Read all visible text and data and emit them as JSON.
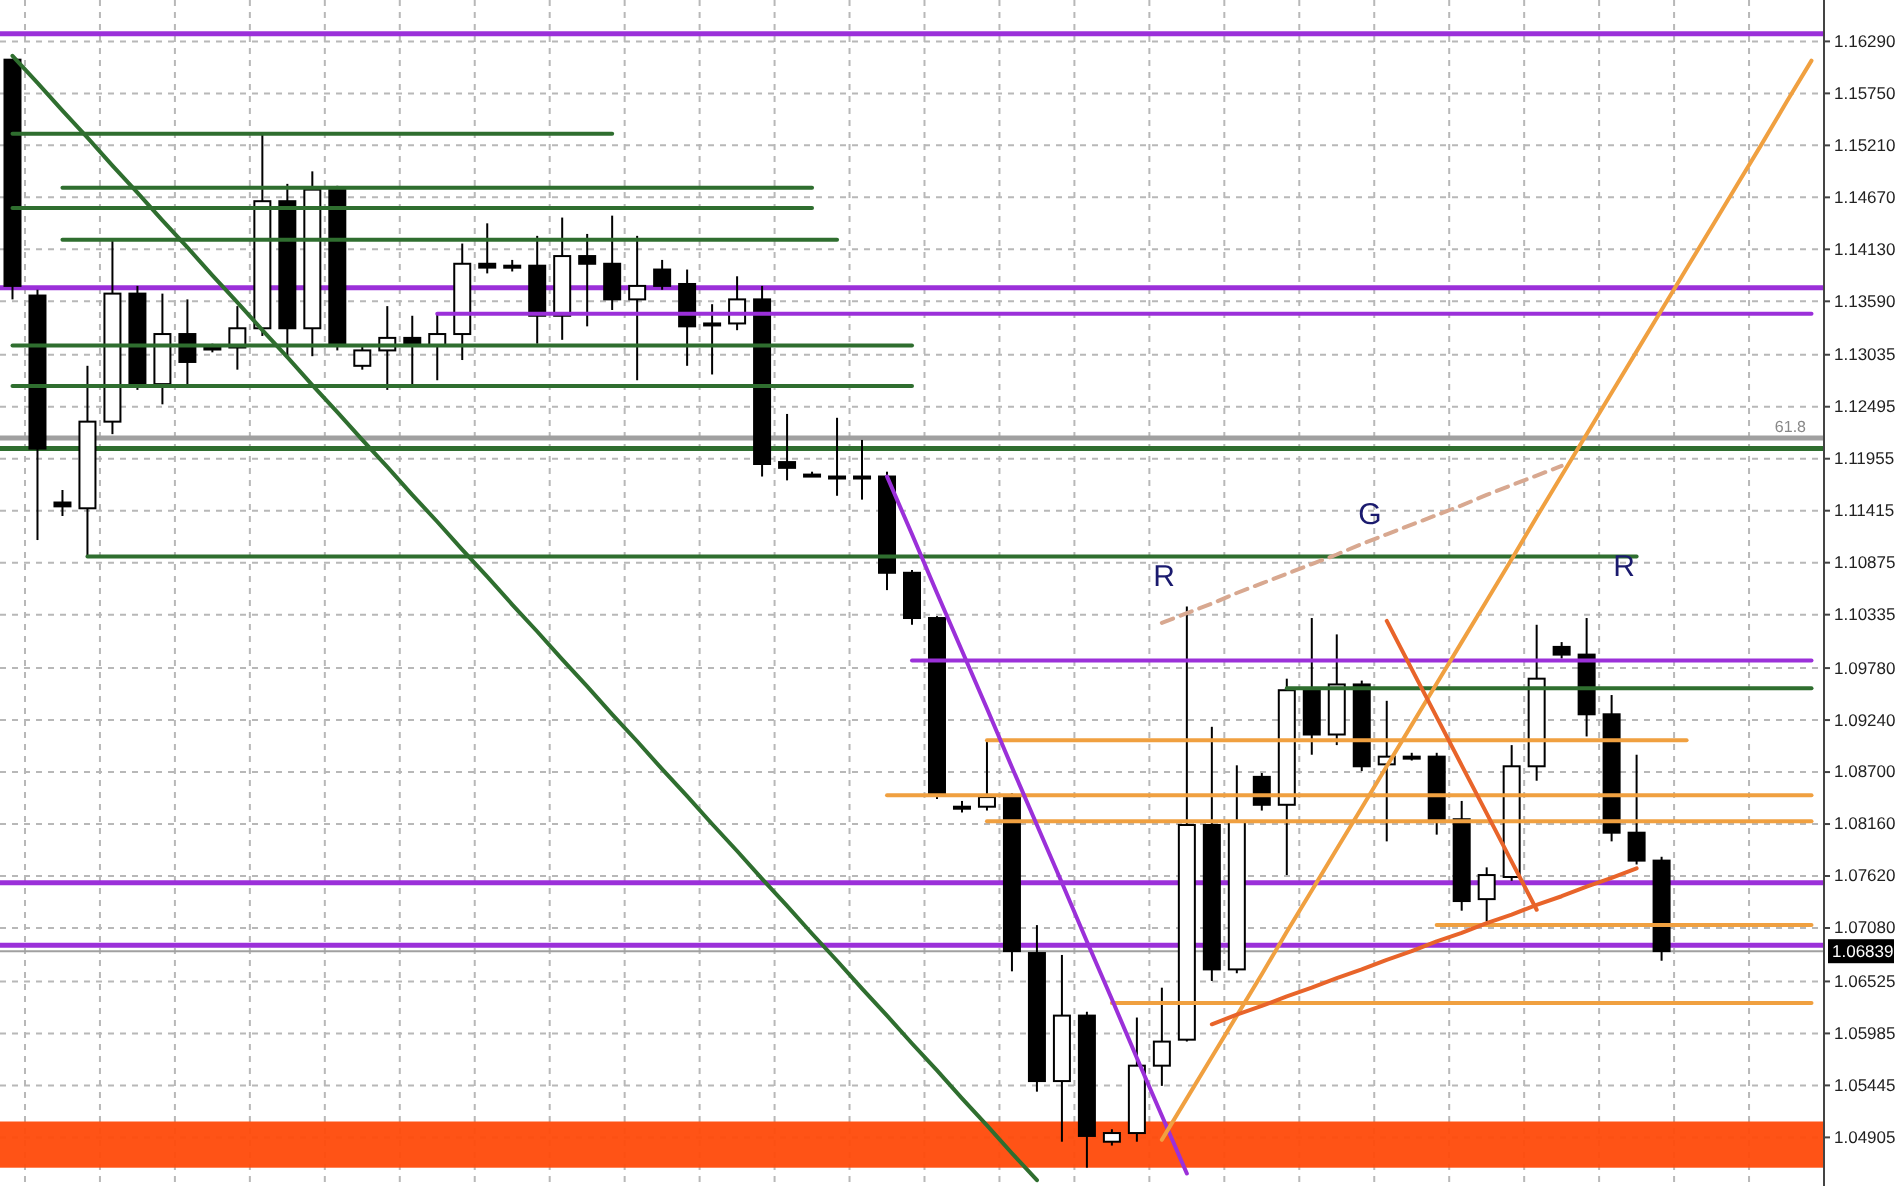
{
  "chart_data": {
    "type": "candlestick",
    "categories": [
      null,
      null,
      null,
      null,
      null,
      null,
      null,
      null,
      null,
      null,
      null,
      null,
      null,
      null,
      null,
      null,
      null,
      null,
      null,
      null,
      null,
      null,
      null,
      null,
      null,
      null,
      null,
      null,
      null,
      null,
      null,
      null,
      null,
      null,
      null,
      null,
      null,
      null,
      null,
      null,
      null,
      null,
      null,
      null,
      null,
      null,
      null,
      null,
      null,
      null,
      null,
      null,
      null,
      null,
      null,
      null,
      null,
      null,
      null,
      null,
      null,
      null,
      null,
      null,
      null,
      null,
      null,
      null,
      null,
      null,
      null,
      null,
      null
    ],
    "ohlc": [
      [
        1.161,
        1.161,
        1.1361,
        1.1375
      ],
      [
        1.1365,
        1.1371,
        1.1111,
        1.1206
      ],
      [
        1.115,
        1.1163,
        1.1136,
        1.1146
      ],
      [
        1.1144,
        1.1292,
        1.1094,
        1.1234
      ],
      [
        1.1234,
        1.1423,
        1.1221,
        1.1367
      ],
      [
        1.1367,
        1.1375,
        1.1267,
        1.1271
      ],
      [
        1.1273,
        1.1367,
        1.1252,
        1.1325
      ],
      [
        1.1325,
        1.1361,
        1.1273,
        1.1296
      ],
      [
        1.1311,
        1.1315,
        1.1306,
        1.1311
      ],
      [
        1.1311,
        1.1354,
        1.1288,
        1.1331
      ],
      [
        1.1331,
        1.1533,
        1.1323,
        1.1463
      ],
      [
        1.1463,
        1.1481,
        1.1302,
        1.1331
      ],
      [
        1.1331,
        1.1494,
        1.1302,
        1.1475
      ],
      [
        1.1475,
        1.1479,
        1.1308,
        1.1315
      ],
      [
        1.1292,
        1.1313,
        1.1288,
        1.1308
      ],
      [
        1.1308,
        1.1354,
        1.1267,
        1.1321
      ],
      [
        1.1321,
        1.1344,
        1.1271,
        1.1313
      ],
      [
        1.1313,
        1.1346,
        1.1277,
        1.1325
      ],
      [
        1.1325,
        1.1419,
        1.1298,
        1.1398
      ],
      [
        1.1398,
        1.144,
        1.1388,
        1.1394
      ],
      [
        1.1396,
        1.1402,
        1.139,
        1.1396
      ],
      [
        1.1396,
        1.1427,
        1.1315,
        1.1344
      ],
      [
        1.1344,
        1.1446,
        1.1319,
        1.1406
      ],
      [
        1.1406,
        1.1429,
        1.1333,
        1.1398
      ],
      [
        1.1398,
        1.1448,
        1.135,
        1.1361
      ],
      [
        1.1361,
        1.1427,
        1.1277,
        1.1375
      ],
      [
        1.1392,
        1.1402,
        1.1371,
        1.1375
      ],
      [
        1.1377,
        1.1392,
        1.1292,
        1.1333
      ],
      [
        1.1336,
        1.1356,
        1.1283,
        1.1336
      ],
      [
        1.1336,
        1.1385,
        1.1329,
        1.1361
      ],
      [
        1.1361,
        1.1375,
        1.1177,
        1.119
      ],
      [
        1.1192,
        1.1242,
        1.1173,
        1.1186
      ],
      [
        1.1179,
        1.1182,
        1.1177,
        1.1179
      ],
      [
        1.1177,
        1.1238,
        1.1157,
        1.1177
      ],
      [
        1.1177,
        1.1215,
        1.1153,
        1.1177
      ],
      [
        1.1177,
        1.1182,
        1.1059,
        1.1077
      ],
      [
        1.1077,
        1.108,
        1.1023,
        1.103
      ],
      [
        1.103,
        1.1032,
        1.0842,
        1.0846
      ],
      [
        1.0834,
        1.084,
        1.0828,
        1.0834
      ],
      [
        1.0834,
        1.0903,
        1.083,
        1.0844
      ],
      [
        1.0844,
        1.0848,
        1.0663,
        1.0684
      ],
      [
        1.0682,
        1.0711,
        1.0538,
        1.0549
      ],
      [
        1.0549,
        1.068,
        1.0486,
        1.0617
      ],
      [
        1.0617,
        1.0621,
        1.0459,
        1.0492
      ],
      [
        1.0486,
        1.0499,
        1.0482,
        1.0495
      ],
      [
        1.0495,
        1.0615,
        1.0486,
        1.0565
      ],
      [
        1.0565,
        1.0646,
        1.0544,
        1.059
      ],
      [
        1.0592,
        1.1042,
        1.059,
        1.0815
      ],
      [
        1.0815,
        1.0917,
        1.0653,
        1.0665
      ],
      [
        1.0665,
        1.0877,
        1.0661,
        1.0819
      ],
      [
        1.0865,
        1.0869,
        1.083,
        1.0836
      ],
      [
        1.0836,
        1.0967,
        1.0763,
        1.0955
      ],
      [
        1.0955,
        1.103,
        1.0888,
        1.0909
      ],
      [
        1.0909,
        1.1013,
        1.0898,
        1.0961
      ],
      [
        1.0961,
        1.0965,
        1.0871,
        1.0876
      ],
      [
        1.0878,
        1.0944,
        1.0798,
        1.0886
      ],
      [
        1.0886,
        1.089,
        1.0882,
        1.0886
      ],
      [
        1.0886,
        1.089,
        1.0805,
        1.0821
      ],
      [
        1.0821,
        1.084,
        1.0726,
        1.0736
      ],
      [
        1.0738,
        1.0771,
        1.0715,
        1.0763
      ],
      [
        1.0761,
        1.0898,
        1.0757,
        1.0876
      ],
      [
        1.0876,
        1.1023,
        1.0861,
        1.0967
      ],
      [
        1.1,
        1.1005,
        1.0988,
        1.0992
      ],
      [
        1.0992,
        1.103,
        1.0907,
        1.093
      ],
      [
        1.093,
        1.095,
        1.0798,
        1.0807
      ],
      [
        1.0807,
        1.0888,
        1.0774,
        1.0778
      ],
      [
        1.0778,
        1.0782,
        1.0674,
        1.0684
      ],
      null,
      null,
      null,
      null,
      null,
      null
    ],
    "series": [
      {
        "type": "line",
        "color": "#2f6e2f",
        "values": [
          1.1533,
          1.1533,
          1.1533,
          1.1533,
          1.1533,
          1.1533,
          1.1533,
          1.1533,
          1.1533,
          1.1533,
          1.1533,
          1.1533,
          1.1533,
          1.1533,
          1.1533,
          1.1533,
          1.1533,
          1.1533,
          1.1533,
          1.1533,
          1.1533,
          1.1533,
          1.1533,
          1.1533,
          1.1533,
          null,
          null,
          null,
          null,
          null,
          null,
          null,
          null,
          null,
          null,
          null,
          null,
          null,
          null,
          null,
          null,
          null,
          null,
          null,
          null,
          null,
          null,
          null,
          null,
          null,
          null,
          null,
          null,
          null,
          null,
          null,
          null,
          null,
          null,
          null,
          null,
          null,
          null,
          null,
          null,
          null,
          null,
          null,
          null,
          null,
          null,
          null,
          null
        ]
      },
      {
        "type": "line",
        "color": "#2f6e2f",
        "values": [
          null,
          null,
          1.1477,
          1.1477,
          1.1477,
          1.1477,
          1.1477,
          1.1477,
          1.1477,
          1.1477,
          1.1477,
          1.1477,
          1.1477,
          1.1477,
          1.1477,
          1.1477,
          1.1477,
          1.1477,
          1.1477,
          1.1477,
          1.1477,
          1.1477,
          1.1477,
          1.1477,
          1.1477,
          1.1477,
          1.1477,
          1.1477,
          1.1477,
          1.1477,
          1.1477,
          1.1477,
          1.1477,
          null,
          null,
          null,
          null,
          null,
          null,
          null,
          null,
          null,
          null,
          null,
          null,
          null,
          null,
          null,
          null,
          null,
          null,
          null,
          null,
          null,
          null,
          null,
          null,
          null,
          null,
          null,
          null,
          null,
          null,
          null,
          null,
          null,
          null,
          null,
          null,
          null,
          null,
          null,
          null
        ]
      },
      {
        "type": "line",
        "color": "#2f6e2f",
        "values": [
          1.1456,
          1.1456,
          1.1456,
          1.1456,
          1.1456,
          1.1456,
          1.1456,
          1.1456,
          1.1456,
          1.1456,
          1.1456,
          1.1456,
          1.1456,
          1.1456,
          1.1456,
          1.1456,
          1.1456,
          1.1456,
          1.1456,
          1.1456,
          1.1456,
          1.1456,
          1.1456,
          1.1456,
          1.1456,
          1.1456,
          1.1456,
          1.1456,
          1.1456,
          1.1456,
          1.1456,
          1.1456,
          1.1456,
          null,
          null,
          null,
          null,
          null,
          null,
          null,
          null,
          null,
          null,
          null,
          null,
          null,
          null,
          null,
          null,
          null,
          null,
          null,
          null,
          null,
          null,
          null,
          null,
          null,
          null,
          null,
          null,
          null,
          null,
          null,
          null,
          null,
          null,
          null,
          null,
          null,
          null,
          null,
          null
        ]
      },
      {
        "type": "line",
        "color": "#2f6e2f",
        "values": [
          null,
          null,
          1.1423,
          1.1423,
          1.1423,
          1.1423,
          1.1423,
          1.1423,
          1.1423,
          1.1423,
          1.1423,
          1.1423,
          1.1423,
          1.1423,
          1.1423,
          1.1423,
          1.1423,
          1.1423,
          1.1423,
          1.1423,
          1.1423,
          1.1423,
          1.1423,
          1.1423,
          1.1423,
          1.1423,
          1.1423,
          1.1423,
          1.1423,
          1.1423,
          1.1423,
          1.1423,
          1.1423,
          1.1423,
          null,
          null,
          null,
          null,
          null,
          null,
          null,
          null,
          null,
          null,
          null,
          null,
          null,
          null,
          null,
          null,
          null,
          null,
          null,
          null,
          null,
          null,
          null,
          null,
          null,
          null,
          null,
          null,
          null,
          null,
          null,
          null,
          null,
          null,
          null,
          null,
          null,
          null,
          null
        ]
      },
      {
        "type": "line",
        "color": "#2f6e2f",
        "values": [
          1.1313,
          1.1313,
          1.1313,
          1.1313,
          1.1313,
          1.1313,
          1.1313,
          1.1313,
          1.1313,
          1.1313,
          1.1313,
          1.1313,
          1.1313,
          1.1313,
          1.1313,
          1.1313,
          1.1313,
          1.1313,
          1.1313,
          1.1313,
          1.1313,
          1.1313,
          1.1313,
          1.1313,
          1.1313,
          1.1313,
          1.1313,
          1.1313,
          1.1313,
          1.1313,
          1.1313,
          1.1313,
          1.1313,
          1.1313,
          1.1313,
          1.1313,
          1.1313,
          null,
          null,
          null,
          null,
          null,
          null,
          null,
          null,
          null,
          null,
          null,
          null,
          null,
          null,
          null,
          null,
          null,
          null,
          null,
          null,
          null,
          null,
          null,
          null,
          null,
          null,
          null,
          null,
          null,
          null,
          null,
          null,
          null,
          null,
          null,
          null
        ]
      },
      {
        "type": "line",
        "color": "#2f6e2f",
        "values": [
          1.1271,
          1.1271,
          1.1271,
          1.1271,
          1.1271,
          1.1271,
          1.1271,
          1.1271,
          1.1271,
          1.1271,
          1.1271,
          1.1271,
          1.1271,
          1.1271,
          1.1271,
          1.1271,
          1.1271,
          1.1271,
          1.1271,
          1.1271,
          1.1271,
          1.1271,
          1.1271,
          1.1271,
          1.1271,
          1.1271,
          1.1271,
          1.1271,
          1.1271,
          1.1271,
          1.1271,
          1.1271,
          1.1271,
          1.1271,
          1.1271,
          1.1271,
          1.1271,
          null,
          null,
          null,
          null,
          null,
          null,
          null,
          null,
          null,
          null,
          null,
          null,
          null,
          null,
          null,
          null,
          null,
          null,
          null,
          null,
          null,
          null,
          null,
          null,
          null,
          null,
          null,
          null,
          null,
          null,
          null,
          null,
          null,
          null,
          null,
          null
        ]
      },
      {
        "type": "line",
        "color": "#2f6e2f",
        "values": [
          null,
          null,
          null,
          1.1094,
          1.1094,
          1.1094,
          1.1094,
          1.1094,
          1.1094,
          1.1094,
          1.1094,
          1.1094,
          1.1094,
          1.1094,
          1.1094,
          1.1094,
          1.1094,
          1.1094,
          1.1094,
          1.1094,
          1.1094,
          1.1094,
          1.1094,
          1.1094,
          1.1094,
          1.1094,
          1.1094,
          1.1094,
          1.1094,
          1.1094,
          1.1094,
          1.1094,
          1.1094,
          1.1094,
          1.1094,
          1.1094,
          1.1094,
          1.1094,
          1.1094,
          1.1094,
          1.1094,
          1.1094,
          1.1094,
          1.1094,
          1.1094,
          1.1094,
          1.1094,
          1.1094,
          1.1094,
          1.1094,
          1.1094,
          1.1094,
          1.1094,
          1.1094,
          1.1094,
          1.1094,
          1.1094,
          1.1094,
          1.1094,
          1.1094,
          1.1094,
          1.1094,
          1.1094,
          1.1094,
          1.1094,
          1.1094,
          null,
          null,
          null,
          null,
          null,
          null,
          null
        ]
      },
      {
        "type": "line",
        "color": "#2f6e2f",
        "values": [
          null,
          null,
          null,
          null,
          null,
          null,
          null,
          null,
          null,
          null,
          null,
          null,
          null,
          null,
          null,
          null,
          null,
          null,
          null,
          null,
          null,
          null,
          null,
          null,
          null,
          null,
          null,
          null,
          null,
          null,
          null,
          null,
          null,
          null,
          null,
          null,
          null,
          null,
          null,
          null,
          null,
          null,
          null,
          null,
          null,
          null,
          null,
          null,
          null,
          null,
          null,
          1.0957,
          1.0957,
          1.0957,
          1.0957,
          1.0957,
          1.0957,
          1.0957,
          1.0957,
          1.0957,
          1.0957,
          1.0957,
          1.0957,
          1.0957,
          1.0957,
          1.0957,
          1.0957,
          1.0957,
          1.0957,
          1.0957,
          1.0957,
          1.0957,
          1.0957
        ]
      },
      {
        "type": "line",
        "color": "#9b30d9",
        "values": [
          null,
          null,
          null,
          null,
          null,
          null,
          null,
          null,
          null,
          null,
          null,
          null,
          null,
          null,
          null,
          null,
          null,
          1.1346,
          1.1346,
          1.1346,
          1.1346,
          1.1346,
          1.1346,
          1.1346,
          1.1346,
          1.1346,
          1.1346,
          1.1346,
          1.1346,
          1.1346,
          1.1346,
          1.1346,
          1.1346,
          1.1346,
          1.1346,
          1.1346,
          1.1346,
          1.1346,
          1.1346,
          1.1346,
          1.1346,
          1.1346,
          1.1346,
          1.1346,
          1.1346,
          1.1346,
          1.1346,
          1.1346,
          1.1346,
          1.1346,
          1.1346,
          1.1346,
          1.1346,
          1.1346,
          1.1346,
          1.1346,
          1.1346,
          1.1346,
          1.1346,
          1.1346,
          1.1346,
          1.1346,
          1.1346,
          1.1346,
          1.1346,
          1.1346,
          1.1346,
          1.1346,
          1.1346,
          1.1346,
          1.1346,
          1.1346,
          1.1346
        ]
      },
      {
        "type": "line",
        "color": "#9b30d9",
        "values": [
          null,
          null,
          null,
          null,
          null,
          null,
          null,
          null,
          null,
          null,
          null,
          null,
          null,
          null,
          null,
          null,
          null,
          null,
          null,
          null,
          null,
          null,
          null,
          null,
          null,
          null,
          null,
          null,
          null,
          null,
          null,
          null,
          null,
          null,
          null,
          null,
          1.0986,
          1.0986,
          1.0986,
          1.0986,
          1.0986,
          1.0986,
          1.0986,
          1.0986,
          1.0986,
          1.0986,
          1.0986,
          1.0986,
          1.0986,
          1.0986,
          1.0986,
          1.0986,
          1.0986,
          1.0986,
          1.0986,
          1.0986,
          1.0986,
          1.0986,
          1.0986,
          1.0986,
          1.0986,
          1.0986,
          1.0986,
          1.0986,
          1.0986,
          1.0986,
          1.0986,
          1.0986,
          1.0986,
          1.0986,
          1.0986,
          1.0986,
          1.0986
        ]
      },
      {
        "type": "line",
        "color": "#f0a040",
        "values": [
          null,
          null,
          null,
          null,
          null,
          null,
          null,
          null,
          null,
          null,
          null,
          null,
          null,
          null,
          null,
          null,
          null,
          null,
          null,
          null,
          null,
          null,
          null,
          null,
          null,
          null,
          null,
          null,
          null,
          null,
          null,
          null,
          null,
          null,
          null,
          null,
          null,
          null,
          null,
          1.0903,
          1.0903,
          1.0903,
          1.0903,
          1.0903,
          1.0903,
          1.0903,
          1.0903,
          1.0903,
          1.0903,
          1.0903,
          1.0903,
          1.0903,
          1.0903,
          1.0903,
          1.0903,
          1.0903,
          1.0903,
          1.0903,
          1.0903,
          1.0903,
          1.0903,
          1.0903,
          1.0903,
          1.0903,
          1.0903,
          1.0903,
          1.0903,
          1.0903,
          null,
          null,
          null,
          null,
          null
        ]
      },
      {
        "type": "line",
        "color": "#f0a040",
        "values": [
          null,
          null,
          null,
          null,
          null,
          null,
          null,
          null,
          null,
          null,
          null,
          null,
          null,
          null,
          null,
          null,
          null,
          null,
          null,
          null,
          null,
          null,
          null,
          null,
          null,
          null,
          null,
          null,
          null,
          null,
          null,
          null,
          null,
          null,
          null,
          1.0846,
          1.0846,
          1.0846,
          1.0846,
          1.0846,
          1.0846,
          1.0846,
          1.0846,
          1.0846,
          1.0846,
          1.0846,
          1.0846,
          1.0846,
          1.0846,
          1.0846,
          1.0846,
          1.0846,
          1.0846,
          1.0846,
          1.0846,
          1.0846,
          1.0846,
          1.0846,
          1.0846,
          1.0846,
          1.0846,
          1.0846,
          1.0846,
          1.0846,
          1.0846,
          1.0846,
          1.0846,
          1.0846,
          1.0846,
          1.0846,
          1.0846,
          1.0846,
          1.0846
        ]
      },
      {
        "type": "line",
        "color": "#f0a040",
        "values": [
          null,
          null,
          null,
          null,
          null,
          null,
          null,
          null,
          null,
          null,
          null,
          null,
          null,
          null,
          null,
          null,
          null,
          null,
          null,
          null,
          null,
          null,
          null,
          null,
          null,
          null,
          null,
          null,
          null,
          null,
          null,
          null,
          null,
          null,
          null,
          null,
          null,
          null,
          null,
          1.0819,
          1.0819,
          1.0819,
          1.0819,
          1.0819,
          1.0819,
          1.0819,
          1.0819,
          1.0819,
          1.0819,
          1.0819,
          1.0819,
          1.0819,
          1.0819,
          1.0819,
          1.0819,
          1.0819,
          1.0819,
          1.0819,
          1.0819,
          1.0819,
          1.0819,
          1.0819,
          1.0819,
          1.0819,
          1.0819,
          1.0819,
          1.0819,
          1.0819,
          1.0819,
          1.0819,
          1.0819,
          1.0819,
          1.0819
        ]
      },
      {
        "type": "line",
        "color": "#f0a040",
        "values": [
          null,
          null,
          null,
          null,
          null,
          null,
          null,
          null,
          null,
          null,
          null,
          null,
          null,
          null,
          null,
          null,
          null,
          null,
          null,
          null,
          null,
          null,
          null,
          null,
          null,
          null,
          null,
          null,
          null,
          null,
          null,
          null,
          null,
          null,
          null,
          null,
          null,
          null,
          null,
          null,
          null,
          null,
          null,
          null,
          null,
          null,
          null,
          null,
          null,
          null,
          null,
          null,
          null,
          null,
          null,
          null,
          null,
          1.0711,
          1.0711,
          1.0711,
          1.0711,
          1.0711,
          1.0711,
          1.0711,
          1.0711,
          1.0711,
          1.0711,
          1.0711,
          1.0711,
          1.0711,
          1.0711,
          1.0711,
          1.0711
        ]
      },
      {
        "type": "line",
        "color": "#f0a040",
        "values": [
          null,
          null,
          null,
          null,
          null,
          null,
          null,
          null,
          null,
          null,
          null,
          null,
          null,
          null,
          null,
          null,
          null,
          null,
          null,
          null,
          null,
          null,
          null,
          null,
          null,
          null,
          null,
          null,
          null,
          null,
          null,
          null,
          null,
          null,
          null,
          null,
          null,
          null,
          null,
          null,
          null,
          null,
          null,
          null,
          1.063,
          1.063,
          1.063,
          1.063,
          1.063,
          1.063,
          1.063,
          1.063,
          1.063,
          1.063,
          1.063,
          1.063,
          1.063,
          1.063,
          1.063,
          1.063,
          1.063,
          1.063,
          1.063,
          1.063,
          1.063,
          1.063,
          1.063,
          1.063,
          1.063,
          1.063,
          1.063,
          1.063,
          1.063
        ]
      },
      {
        "type": "line",
        "color": "#2f6e2f",
        "values": [
          1.1614,
          1.1586,
          1.1557,
          1.1529,
          1.15,
          1.1472,
          1.1443,
          1.1415,
          1.1386,
          1.1358,
          1.1329,
          1.1301,
          1.1272,
          1.1244,
          1.1215,
          1.1187,
          1.1158,
          1.113,
          1.1101,
          1.1073,
          1.1044,
          1.1016,
          1.0987,
          1.0959,
          1.093,
          1.0902,
          1.0873,
          1.0845,
          1.0816,
          1.0788,
          1.0759,
          1.0731,
          1.0702,
          1.0674,
          1.0645,
          1.0617,
          1.0588,
          1.056,
          1.0531,
          1.0503,
          1.0474,
          1.0446,
          null,
          null,
          null,
          null,
          null,
          null,
          null,
          null,
          null,
          null,
          null,
          null,
          null,
          null,
          null,
          null,
          null,
          null,
          null,
          null,
          null,
          null,
          null,
          null,
          null,
          null,
          null,
          null,
          null,
          null,
          null
        ]
      },
      {
        "type": "line",
        "color": "#9b30d9",
        "values": [
          null,
          null,
          null,
          null,
          null,
          null,
          null,
          null,
          null,
          null,
          null,
          null,
          null,
          null,
          null,
          null,
          null,
          null,
          null,
          null,
          null,
          null,
          null,
          null,
          null,
          null,
          null,
          null,
          null,
          null,
          null,
          null,
          null,
          null,
          null,
          1.1177,
          1.1117,
          1.1056,
          1.0996,
          1.0936,
          1.0875,
          1.0815,
          1.0755,
          1.0694,
          1.0634,
          1.0573,
          1.0513,
          1.0453,
          null,
          null,
          null,
          null,
          null,
          null,
          null,
          null,
          null,
          null,
          null,
          null,
          null,
          null,
          null,
          null,
          null,
          null,
          null,
          null,
          null,
          null,
          null,
          null,
          null
        ]
      },
      {
        "type": "line",
        "color": "#f0a040",
        "values": [
          null,
          null,
          null,
          null,
          null,
          null,
          null,
          null,
          null,
          null,
          null,
          null,
          null,
          null,
          null,
          null,
          null,
          null,
          null,
          null,
          null,
          null,
          null,
          null,
          null,
          null,
          null,
          null,
          null,
          null,
          null,
          null,
          null,
          null,
          null,
          null,
          null,
          null,
          null,
          null,
          null,
          null,
          null,
          null,
          null,
          null,
          1.0488,
          1.0531,
          1.0574,
          1.0617,
          1.066,
          1.0704,
          1.0747,
          1.079,
          1.0833,
          1.0876,
          1.0919,
          1.0962,
          1.1005,
          1.1048,
          1.1091,
          1.1135,
          1.1178,
          1.1221,
          1.1264,
          1.1307,
          1.135,
          1.1393,
          1.1436,
          1.1479,
          1.1522,
          1.1566,
          1.1609
        ]
      },
      {
        "type": "line",
        "color": "#e8642a",
        "values": [
          null,
          null,
          null,
          null,
          null,
          null,
          null,
          null,
          null,
          null,
          null,
          null,
          null,
          null,
          null,
          null,
          null,
          null,
          null,
          null,
          null,
          null,
          null,
          null,
          null,
          null,
          null,
          null,
          null,
          null,
          null,
          null,
          null,
          null,
          null,
          null,
          null,
          null,
          null,
          null,
          null,
          null,
          null,
          null,
          null,
          null,
          null,
          null,
          1.0608,
          1.0618,
          1.0627,
          1.0637,
          1.0646,
          1.0656,
          1.0665,
          1.0675,
          1.0684,
          1.0694,
          1.0703,
          1.0713,
          1.0722,
          1.0732,
          1.0741,
          1.0751,
          1.076,
          1.077,
          null,
          null,
          null,
          null,
          null,
          null,
          null
        ]
      },
      {
        "type": "line",
        "color": "#e8642a",
        "values": [
          null,
          null,
          null,
          null,
          null,
          null,
          null,
          null,
          null,
          null,
          null,
          null,
          null,
          null,
          null,
          null,
          null,
          null,
          null,
          null,
          null,
          null,
          null,
          null,
          null,
          null,
          null,
          null,
          null,
          null,
          null,
          null,
          null,
          null,
          null,
          null,
          null,
          null,
          null,
          null,
          null,
          null,
          null,
          null,
          null,
          null,
          null,
          null,
          null,
          null,
          null,
          null,
          null,
          null,
          null,
          1.1027,
          1.0977,
          1.0927,
          1.0877,
          1.0827,
          1.0777,
          1.0727,
          null,
          null,
          null,
          null,
          null,
          null,
          null,
          null,
          null,
          null,
          null
        ]
      },
      {
        "type": "line",
        "color": "#d8a890",
        "line_style": "dashed",
        "values": [
          null,
          null,
          null,
          null,
          null,
          null,
          null,
          null,
          null,
          null,
          null,
          null,
          null,
          null,
          null,
          null,
          null,
          null,
          null,
          null,
          null,
          null,
          null,
          null,
          null,
          null,
          null,
          null,
          null,
          null,
          null,
          null,
          null,
          null,
          null,
          null,
          null,
          null,
          null,
          null,
          null,
          null,
          null,
          null,
          null,
          null,
          1.1025,
          1.1035,
          1.1045,
          1.1056,
          1.1066,
          1.1076,
          1.1086,
          1.1096,
          1.1107,
          1.1117,
          1.1127,
          1.1137,
          1.1147,
          1.1158,
          1.1168,
          1.1178,
          1.1188,
          null,
          null,
          null,
          null,
          null,
          null,
          null,
          null,
          null,
          null
        ]
      }
    ],
    "ref_lines": [
      {
        "axis": "y",
        "value": 1.1637,
        "color": "#9b30d9"
      },
      {
        "axis": "y",
        "value": 1.1373,
        "color": "#9b30d9"
      },
      {
        "axis": "y",
        "value": 1.0755,
        "color": "#9b30d9"
      },
      {
        "axis": "y",
        "value": 1.069,
        "color": "#9b30d9"
      },
      {
        "axis": "y",
        "value": 1.1206,
        "color": "#2f6e2f"
      },
      {
        "axis": "y",
        "value": 1.1217,
        "color": "#a0a0a0"
      },
      {
        "axis": "y",
        "value": 1.06839,
        "color": "#a0a0a0",
        "label": "1.06839"
      }
    ],
    "bands": [
      {
        "axis": "y",
        "from": 1.0459,
        "to": 1.0507,
        "color": "#ff4a0a"
      }
    ],
    "annotations": [
      "R",
      "G",
      "R",
      "61.8"
    ],
    "ylim": [
      1.044,
      1.1672
    ],
    "yticks": [
      {
        "value": 1.1629,
        "label": "1.16290"
      },
      {
        "value": 1.1575,
        "label": "1.15750"
      },
      {
        "value": 1.1521,
        "label": "1.15210"
      },
      {
        "value": 1.1467,
        "label": "1.14670"
      },
      {
        "value": 1.1413,
        "label": "1.14130"
      },
      {
        "value": 1.1359,
        "label": "1.13590"
      },
      {
        "value": 1.13035,
        "label": "1.13035"
      },
      {
        "value": 1.12495,
        "label": "1.12495"
      },
      {
        "value": 1.11955,
        "label": "1.11955"
      },
      {
        "value": 1.11415,
        "label": "1.11415"
      },
      {
        "value": 1.10875,
        "label": "1.10875"
      },
      {
        "value": 1.10335,
        "label": "1.10335"
      },
      {
        "value": 1.0978,
        "label": "1.09780"
      },
      {
        "value": 1.0924,
        "label": "1.09240"
      },
      {
        "value": 1.087,
        "label": "1.08700"
      },
      {
        "value": 1.0816,
        "label": "1.08160"
      },
      {
        "value": 1.0762,
        "label": "1.07620"
      },
      {
        "value": 1.0708,
        "label": "1.07080"
      },
      {
        "value": 1.06525,
        "label": "1.06525"
      },
      {
        "value": 1.05985,
        "label": "1.05985"
      },
      {
        "value": 1.05445,
        "label": "1.05445"
      },
      {
        "value": 1.04905,
        "label": "1.04905"
      }
    ],
    "grid": true,
    "tick_labels": "y"
  }
}
